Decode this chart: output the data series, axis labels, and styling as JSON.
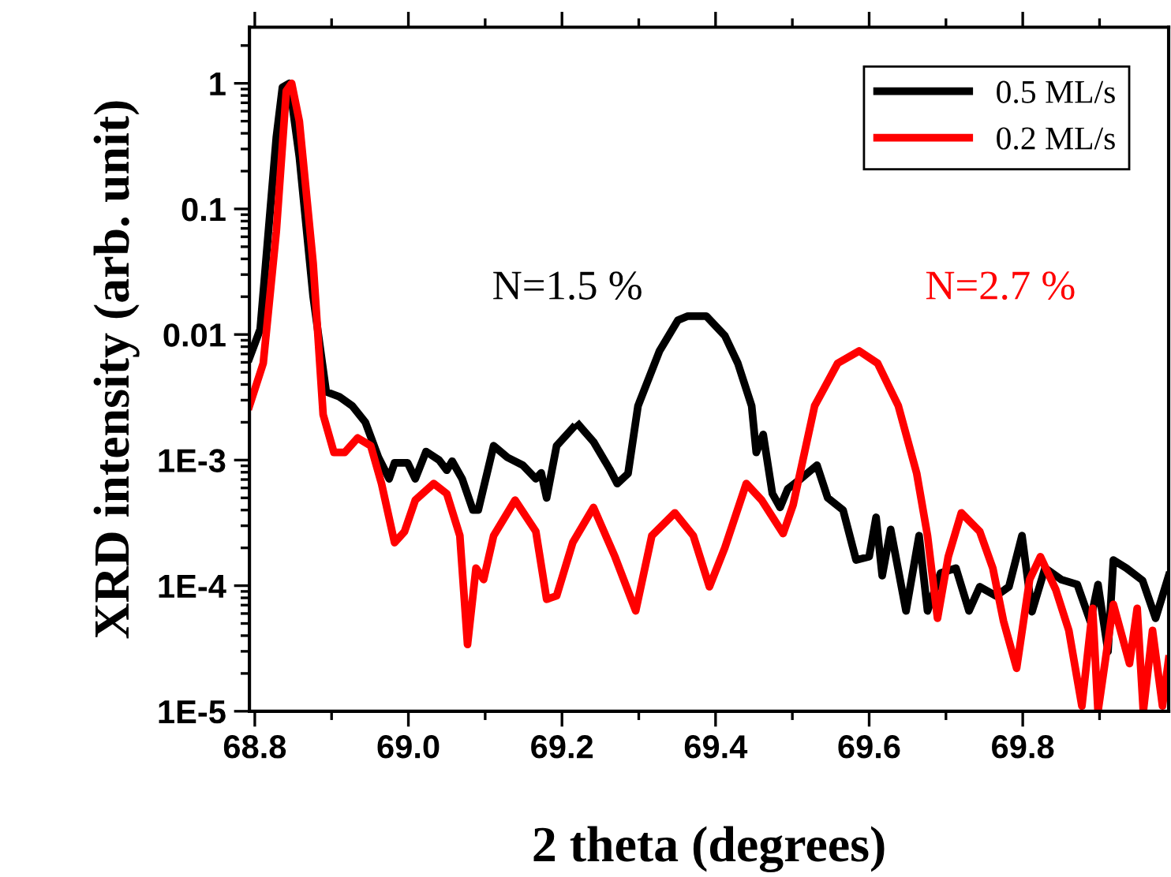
{
  "chart_data": {
    "type": "line",
    "xlabel": "2 theta (degrees)",
    "ylabel": "XRD intensity (arb. unit)",
    "log": "y",
    "xlim": [
      68.793,
      69.99
    ],
    "ylim": [
      1e-05,
      2.8
    ],
    "xticks": [
      {
        "value": 68.8,
        "label": "68.8"
      },
      {
        "value": 69.0,
        "label": "69.0"
      },
      {
        "value": 69.2,
        "label": "69.2"
      },
      {
        "value": 69.4,
        "label": "69.4"
      },
      {
        "value": 69.6,
        "label": "69.6"
      },
      {
        "value": 69.8,
        "label": "69.8"
      }
    ],
    "yticks": [
      {
        "value": 1e-05,
        "label": "1E-5"
      },
      {
        "value": 0.0001,
        "label": "1E-4"
      },
      {
        "value": 0.001,
        "label": "1E-3"
      },
      {
        "value": 0.01,
        "label": "0.01"
      },
      {
        "value": 0.1,
        "label": "0.1"
      },
      {
        "value": 1,
        "label": "1"
      }
    ],
    "grid": false,
    "legend": "top right",
    "marker": "none",
    "line_style": "solid",
    "series": [
      {
        "name": "0.5 ML/s",
        "color": "#000000",
        "x": [
          68.793,
          68.807,
          68.828,
          68.836,
          68.845,
          68.858,
          68.876,
          68.893,
          68.91,
          68.927,
          68.944,
          68.961,
          68.975,
          68.982,
          68.999,
          69.009,
          69.023,
          69.04,
          69.05,
          69.057,
          69.07,
          69.084,
          69.091,
          69.111,
          69.129,
          69.149,
          69.166,
          69.173,
          69.18,
          69.193,
          69.214,
          69.218,
          69.222,
          69.241,
          69.262,
          69.272,
          69.286,
          69.299,
          69.327,
          69.351,
          69.364,
          69.388,
          69.412,
          69.429,
          69.447,
          69.453,
          69.462,
          69.474,
          69.484,
          69.494,
          69.511,
          69.532,
          69.546,
          69.566,
          69.583,
          69.6,
          69.609,
          69.617,
          69.628,
          69.648,
          69.665,
          69.676,
          69.693,
          69.713,
          69.73,
          69.744,
          69.765,
          69.782,
          69.799,
          69.812,
          69.829,
          69.85,
          69.871,
          69.888,
          69.898,
          69.911,
          69.918,
          69.935,
          69.956,
          69.973,
          69.99
        ],
        "values": [
          0.0065,
          0.011,
          0.37,
          0.93,
          1,
          0.26,
          0.02,
          0.0035,
          0.0032,
          0.0027,
          0.002,
          0.00105,
          0.00071,
          0.00095,
          0.00095,
          0.00071,
          0.00117,
          0.001,
          0.00083,
          0.00098,
          0.00071,
          0.0004,
          0.0004,
          0.0013,
          0.00105,
          0.00091,
          0.00071,
          0.00079,
          0.0005,
          0.0013,
          0.0018,
          null,
          0.0019,
          0.0014,
          0.00085,
          0.00065,
          0.00078,
          0.0027,
          0.0074,
          0.013,
          0.014,
          0.014,
          0.0098,
          0.0059,
          0.0027,
          0.00115,
          0.0016,
          0.00054,
          0.00042,
          0.00059,
          0.00071,
          0.00091,
          0.0005,
          0.0004,
          0.00016,
          0.00017,
          0.00035,
          0.00012,
          0.00028,
          6.3e-05,
          0.00025,
          6.3e-05,
          0.000126,
          0.000138,
          6.3e-05,
          9.8e-05,
          8.3e-05,
          9.8e-05,
          0.00025,
          6.2e-05,
          0.000138,
          0.000112,
          0.000102,
          5.2e-05,
          0.000102,
          3e-05,
          0.00016,
          0.000138,
          0.00011,
          5.5e-05,
          0.00012
        ]
      },
      {
        "name": "0.2 ML/s",
        "color": "#ff0000",
        "x": [
          68.793,
          68.811,
          68.828,
          68.841,
          68.848,
          68.858,
          68.876,
          68.889,
          68.903,
          68.917,
          68.934,
          68.951,
          68.965,
          68.982,
          68.995,
          69.009,
          69.033,
          69.05,
          69.067,
          69.077,
          69.088,
          69.098,
          69.111,
          69.139,
          69.166,
          69.18,
          69.193,
          69.214,
          69.241,
          69.269,
          69.296,
          69.317,
          69.347,
          69.371,
          69.392,
          69.412,
          69.44,
          69.46,
          69.488,
          69.501,
          69.529,
          69.559,
          69.587,
          69.611,
          69.638,
          69.662,
          69.676,
          69.689,
          69.703,
          69.72,
          69.744,
          69.761,
          69.775,
          69.792,
          69.809,
          69.823,
          69.843,
          69.86,
          69.877,
          69.891,
          69.898,
          69.918,
          69.939,
          69.949,
          69.957,
          69.969,
          69.982,
          69.99
        ],
        "values": [
          0.0027,
          0.0059,
          0.066,
          0.87,
          1,
          0.5,
          0.037,
          0.0023,
          0.00115,
          0.00115,
          0.0015,
          0.0013,
          0.00065,
          0.00022,
          0.00027,
          0.00048,
          0.00065,
          0.00054,
          0.00025,
          3.4e-05,
          0.000138,
          0.000112,
          0.00025,
          0.00048,
          0.00027,
          7.8e-05,
          8.3e-05,
          0.00022,
          0.00042,
          0.00017,
          6.3e-05,
          0.00025,
          0.00038,
          0.00025,
          9.8e-05,
          0.0002,
          0.00065,
          0.00048,
          0.00026,
          0.00044,
          0.0027,
          0.0059,
          0.0074,
          0.0059,
          0.0027,
          0.00078,
          0.00025,
          5.5e-05,
          0.00017,
          0.00038,
          0.00027,
          0.000138,
          5.2e-05,
          2.2e-05,
          0.000112,
          0.00017,
          9.3e-05,
          4.4e-05,
          1.1e-05,
          6.6e-05,
          1e-05,
          7.1e-05,
          2.4e-05,
          6.6e-05,
          1e-05,
          4.4e-05,
          1.1e-05,
          2.6e-05
        ]
      }
    ],
    "annotations": [
      "N=1.5 %",
      "N=2.7 %"
    ]
  }
}
